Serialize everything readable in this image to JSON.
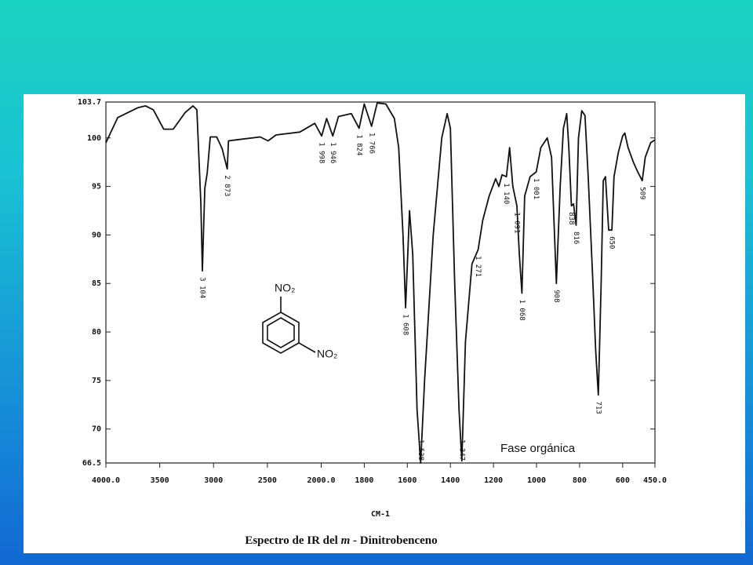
{
  "chart_data": {
    "type": "line",
    "x_label": "CM-1",
    "caption_parts": [
      "Espectro de IR del ",
      "m",
      " - Dinitrobenceno"
    ],
    "annotation": "Fase orgánica",
    "structure_labels": [
      "NO₂",
      "NO₂"
    ],
    "xscale": {
      "break": 2000,
      "factor_below": 2
    },
    "xlim": [
      4000,
      450
    ],
    "xticks": [
      {
        "value": 4000,
        "label": "4000.0"
      },
      3500,
      3000,
      2500,
      {
        "value": 2000,
        "label": "2000.0"
      },
      1800,
      1600,
      1400,
      1200,
      1000,
      800,
      600,
      {
        "value": 450,
        "label": "450.0"
      }
    ],
    "ylim": [
      66.5,
      103.7
    ],
    "yticks": [
      66.5,
      70,
      75,
      80,
      85,
      90,
      95,
      100,
      103.7
    ],
    "color": "#111111",
    "x": [
      4000,
      3890,
      3706,
      3632,
      3559,
      3463,
      3375,
      3265,
      3191,
      3155,
      3118,
      3104,
      3081,
      3059,
      3030,
      2971,
      2920,
      2873,
      2861,
      2787,
      2567,
      2493,
      2420,
      2199,
      2060,
      1998,
      1975,
      1946,
      1920,
      1860,
      1824,
      1800,
      1766,
      1740,
      1700,
      1660,
      1640,
      1620,
      1608,
      1590,
      1575,
      1555,
      1538,
      1520,
      1480,
      1440,
      1415,
      1400,
      1380,
      1360,
      1347,
      1330,
      1300,
      1271,
      1250,
      1220,
      1190,
      1175,
      1160,
      1140,
      1125,
      1110,
      1091,
      1080,
      1068,
      1055,
      1030,
      1001,
      980,
      950,
      930,
      908,
      890,
      875,
      860,
      850,
      838,
      828,
      816,
      805,
      790,
      775,
      760,
      740,
      725,
      713,
      700,
      690,
      680,
      665,
      650,
      640,
      620,
      600,
      590,
      575,
      550,
      530,
      509,
      495,
      470,
      450
    ],
    "values": [
      99.5,
      102.1,
      103.1,
      103.3,
      102.9,
      100.9,
      100.9,
      102.6,
      103.3,
      102.9,
      93.2,
      86.3,
      94.8,
      96.4,
      100.1,
      100.1,
      98.9,
      96.8,
      99.7,
      99.8,
      100.1,
      99.7,
      100.3,
      100.6,
      101.5,
      100.2,
      102,
      100.2,
      102.2,
      102.5,
      101,
      103.5,
      101.2,
      103.6,
      103.5,
      102,
      99,
      90,
      82.5,
      92.5,
      88,
      72,
      66.5,
      75,
      90,
      100,
      102.5,
      101,
      85,
      72,
      66.7,
      79,
      87,
      88.5,
      91.5,
      94,
      95.8,
      95,
      96.2,
      96,
      99,
      95,
      93,
      88,
      84,
      94,
      96,
      96.5,
      99,
      100,
      98,
      85,
      95,
      101,
      102.5,
      99,
      93,
      93.2,
      91,
      100,
      102.8,
      102.3,
      96,
      86,
      78,
      73.5,
      85,
      95.6,
      96,
      90.5,
      90.5,
      96,
      98.5,
      100.2,
      100.5,
      99,
      97.5,
      96.5,
      95.6,
      98,
      99.5,
      99.8
    ],
    "peaks": [
      {
        "x": 3104,
        "label": "3 104"
      },
      {
        "x": 2873,
        "label": "2 873"
      },
      {
        "x": 1998,
        "label": "1 998"
      },
      {
        "x": 1946,
        "label": "1 946"
      },
      {
        "x": 1824,
        "label": "1 824"
      },
      {
        "x": 1766,
        "label": "1 766"
      },
      {
        "x": 1608,
        "label": "1 608"
      },
      {
        "x": 1538,
        "label": "1 538"
      },
      {
        "x": 1347,
        "label": "1 347"
      },
      {
        "x": 1271,
        "label": "1 271"
      },
      {
        "x": 1140,
        "label": "1 140"
      },
      {
        "x": 1091,
        "label": "1 091"
      },
      {
        "x": 1068,
        "label": "1 068"
      },
      {
        "x": 1001,
        "label": "1 001"
      },
      {
        "x": 908,
        "label": "908"
      },
      {
        "x": 838,
        "label": "838"
      },
      {
        "x": 816,
        "label": "816"
      },
      {
        "x": 713,
        "label": "713"
      },
      {
        "x": 650,
        "label": "650"
      },
      {
        "x": 509,
        "label": "509"
      }
    ]
  }
}
